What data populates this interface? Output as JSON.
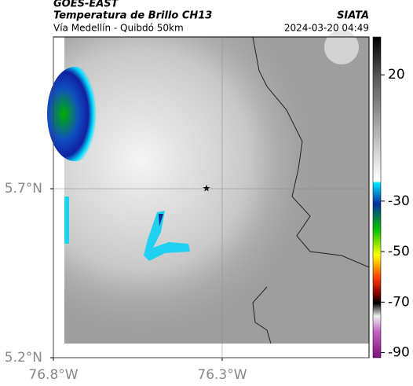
{
  "header": {
    "source": "GOES-EAST",
    "title": "Temperatura de Brillo CH13",
    "brand": "SIATA",
    "subtitle": "Vía Medellín - Quibdó 50km",
    "timestamp": "2024-03-20 04:49"
  },
  "map": {
    "xlim": [
      -76.8,
      -75.865
    ],
    "ylim": [
      5.2,
      6.149
    ],
    "xticks": [
      {
        "value": -76.8,
        "label": "76.8°W"
      },
      {
        "value": -76.3,
        "label": "76.3°W"
      }
    ],
    "yticks": [
      {
        "value": 5.7,
        "label": "5.7°N"
      },
      {
        "value": 5.2,
        "label": "5.2°N"
      }
    ]
  },
  "colorbar": {
    "lim": [
      -92,
      35
    ],
    "ticks": [
      20,
      -30,
      -50,
      -70,
      -90
    ]
  }
}
